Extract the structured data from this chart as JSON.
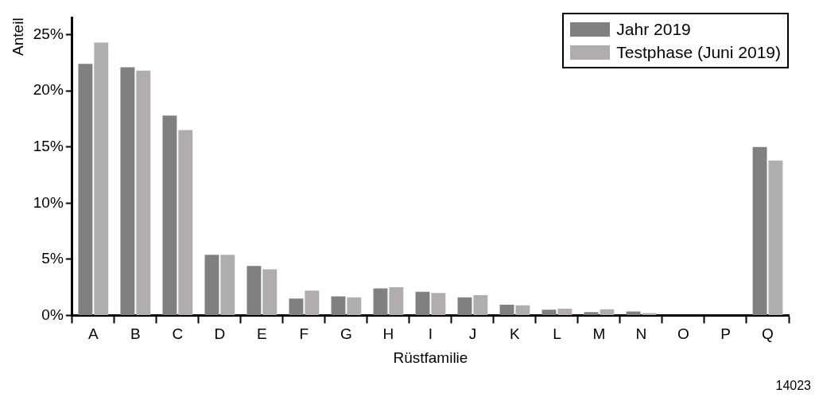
{
  "chart_data": {
    "type": "bar",
    "xlabel": "Rüstfamilie",
    "ylabel": "Anteil",
    "categories": [
      "A",
      "B",
      "C",
      "D",
      "E",
      "F",
      "G",
      "H",
      "I",
      "J",
      "K",
      "L",
      "M",
      "N",
      "O",
      "P",
      "Q"
    ],
    "series": [
      {
        "name": "Jahr 2019",
        "color": "#808080",
        "values": [
          22.4,
          22.1,
          17.8,
          5.4,
          4.4,
          1.5,
          1.7,
          2.4,
          2.1,
          1.6,
          0.95,
          0.5,
          0.3,
          0.35,
          0,
          0,
          15.0
        ]
      },
      {
        "name": "Testphase (Juni 2019)",
        "color": "#b0adac",
        "values": [
          24.3,
          21.8,
          16.5,
          5.4,
          4.1,
          2.2,
          1.6,
          2.5,
          2.0,
          1.8,
          0.9,
          0.6,
          0.55,
          0.2,
          0,
          0,
          13.8
        ]
      }
    ],
    "ylim": [
      0,
      26.5
    ],
    "yticks": [
      {
        "value": 0,
        "label": "0%"
      },
      {
        "value": 5,
        "label": "5%"
      },
      {
        "value": 10,
        "label": "10%"
      },
      {
        "value": 15,
        "label": "15%"
      },
      {
        "value": 20,
        "label": "20%"
      },
      {
        "value": 25,
        "label": "25%"
      }
    ],
    "grid": false,
    "legend": "top right",
    "annotations": [
      "14023"
    ]
  }
}
